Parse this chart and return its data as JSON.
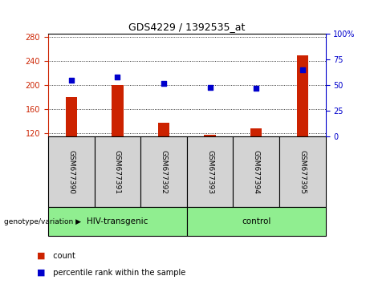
{
  "title": "GDS4229 / 1392535_at",
  "samples": [
    "GSM677390",
    "GSM677391",
    "GSM677392",
    "GSM677393",
    "GSM677394",
    "GSM677395"
  ],
  "count_values": [
    180,
    200,
    138,
    117,
    128,
    250
  ],
  "percentile_values": [
    55,
    58,
    52,
    48,
    47,
    65
  ],
  "bar_color": "#cc2200",
  "dot_color": "#0000cc",
  "ylim_left": [
    115,
    285
  ],
  "ylim_right": [
    0,
    100
  ],
  "yticks_left": [
    120,
    160,
    200,
    240,
    280
  ],
  "yticks_right": [
    0,
    25,
    50,
    75,
    100
  ],
  "bar_bottom": 115,
  "bar_width": 0.25,
  "group_info": [
    {
      "start": 0,
      "end": 2,
      "label": "HIV-transgenic"
    },
    {
      "start": 3,
      "end": 5,
      "label": "control"
    }
  ],
  "legend_count_label": "count",
  "legend_pct_label": "percentile rank within the sample",
  "grid_style": "dotted",
  "sample_box_color": "#d3d3d3",
  "group_box_color": "#90ee90",
  "left_axis_color": "#cc2200",
  "right_axis_color": "#0000cc"
}
